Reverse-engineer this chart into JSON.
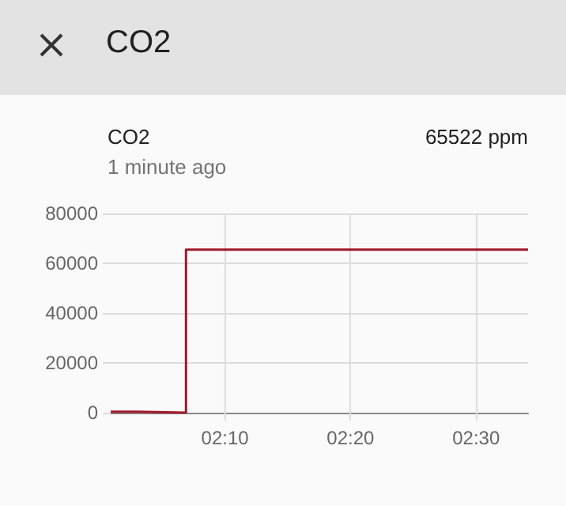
{
  "chart_data": {
    "type": "step",
    "title": "CO2",
    "annotations": [
      "CO2",
      "1 minute ago",
      "65522 ppm"
    ],
    "x": [
      2.015,
      2.05,
      2.115,
      2.569
    ],
    "series": [
      {
        "color": "#a0182a",
        "values": [
          400,
          0,
          65500,
          65500
        ]
      }
    ],
    "xlim": [
      2.015,
      2.569
    ],
    "xticks": [
      {
        "value": 2.1667,
        "label": "02:10"
      },
      {
        "value": 2.3333,
        "label": "02:20"
      },
      {
        "value": 2.5,
        "label": "02:30"
      }
    ],
    "ylim": [
      0,
      80000
    ],
    "yticks": [
      0,
      20000,
      40000,
      60000,
      80000
    ],
    "grid": true,
    "marker": "none",
    "line_style": "solid"
  }
}
